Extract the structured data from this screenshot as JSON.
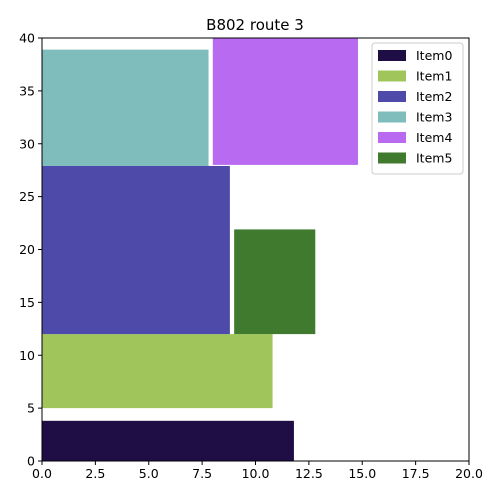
{
  "chart_data": {
    "type": "bar",
    "title": "B802 route 3",
    "xlabel": "",
    "ylabel": "",
    "xlim": [
      0,
      20
    ],
    "ylim": [
      0,
      40
    ],
    "xticks": [
      "0.0",
      "2.5",
      "5.0",
      "7.5",
      "10.0",
      "12.5",
      "15.0",
      "17.5",
      "20.0"
    ],
    "yticks": [
      "0",
      "5",
      "10",
      "15",
      "20",
      "25",
      "30",
      "35",
      "40"
    ],
    "grid": false,
    "legend_position": "top-right",
    "items": [
      {
        "name": "Item0",
        "x": 0.0,
        "y": 0.0,
        "width": 11.8,
        "height": 3.8,
        "color": "#1f0e45"
      },
      {
        "name": "Item1",
        "x": 0.0,
        "y": 5.0,
        "width": 10.8,
        "height": 7.0,
        "color": "#a0c55a"
      },
      {
        "name": "Item2",
        "x": 0.0,
        "y": 12.0,
        "width": 8.8,
        "height": 15.9,
        "color": "#4e4aa9"
      },
      {
        "name": "Item3",
        "x": 0.0,
        "y": 27.9,
        "width": 7.8,
        "height": 11.0,
        "color": "#7fbdbd"
      },
      {
        "name": "Item4",
        "x": 8.0,
        "y": 28.0,
        "width": 6.8,
        "height": 12.0,
        "color": "#b86bf0"
      },
      {
        "name": "Item5",
        "x": 9.0,
        "y": 12.0,
        "width": 3.8,
        "height": 9.9,
        "color": "#3f7a2f"
      }
    ]
  }
}
